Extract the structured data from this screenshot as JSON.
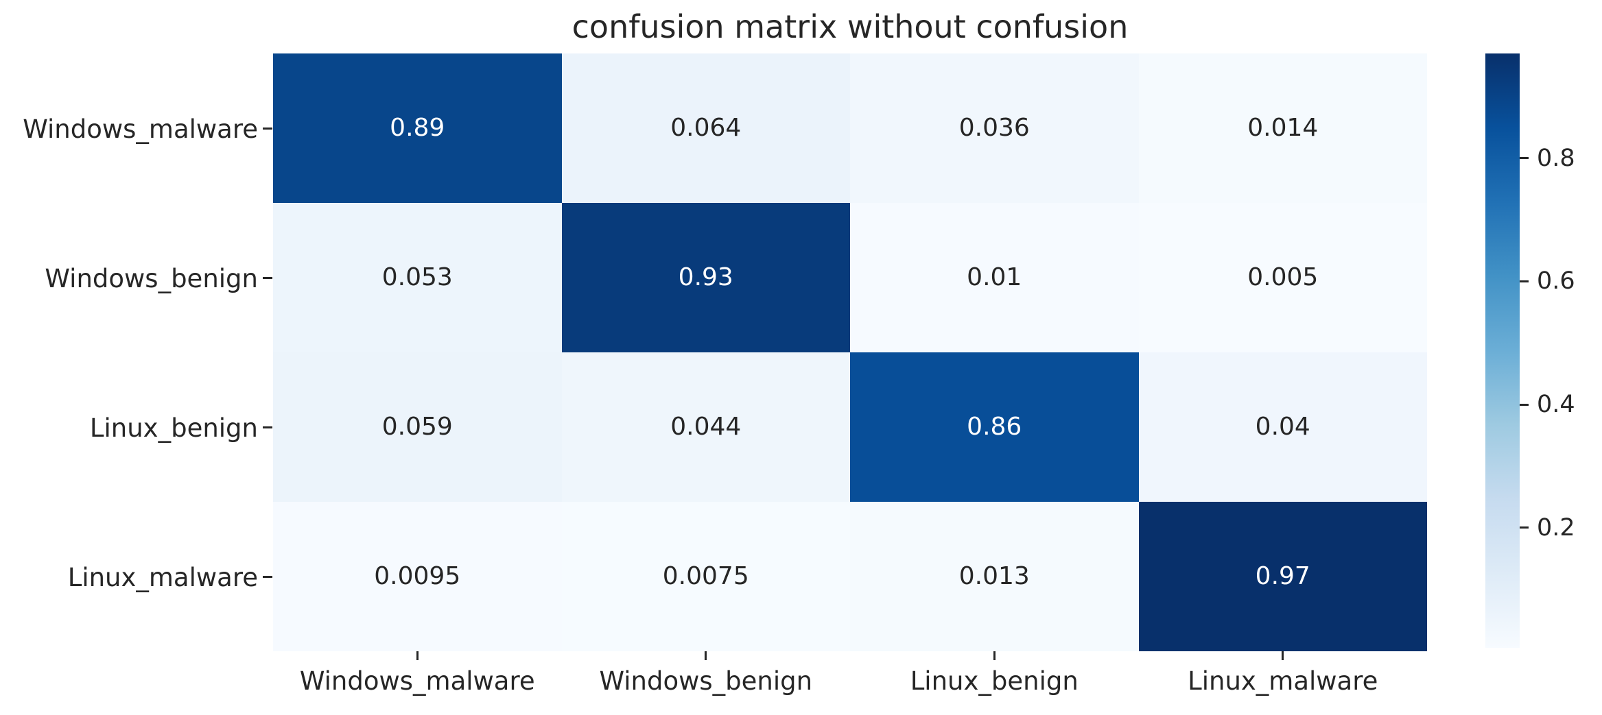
{
  "figure": {
    "background": "#ffffff",
    "text_color": "#262626"
  },
  "chart_data": {
    "type": "heatmap",
    "title": "confusion matrix without confusion",
    "x_tick_labels": [
      "Windows_malware",
      "Windows_benign",
      "Linux_benign",
      "Linux_malware"
    ],
    "y_tick_labels": [
      "Windows_malware",
      "Windows_benign",
      "Linux_benign",
      "Linux_malware"
    ],
    "cells": [
      [
        0.89,
        0.064,
        0.036,
        0.014
      ],
      [
        0.053,
        0.93,
        0.01,
        0.005
      ],
      [
        0.059,
        0.044,
        0.86,
        0.04
      ],
      [
        0.0095,
        0.0075,
        0.013,
        0.97
      ]
    ],
    "cell_labels": [
      [
        "0.89",
        "0.064",
        "0.036",
        "0.014"
      ],
      [
        "0.053",
        "0.93",
        "0.01",
        "0.005"
      ],
      [
        "0.059",
        "0.044",
        "0.86",
        "0.04"
      ],
      [
        "0.0095",
        "0.0075",
        "0.013",
        "0.97"
      ]
    ],
    "vmin": 0.005,
    "vmax": 0.97,
    "colormap": "Blues",
    "colormap_stops": [
      "#f7fbff",
      "#deebf7",
      "#c6dbef",
      "#9ecae1",
      "#6baed6",
      "#4292c6",
      "#2171b5",
      "#08519c",
      "#08306b"
    ],
    "annotation_colors": {
      "light_cell_text": "#262626",
      "dark_cell_text": "#ffffff"
    },
    "colorbar": {
      "position": "right",
      "ticks": [
        0.8,
        0.6,
        0.4,
        0.2
      ],
      "tick_labels": [
        "0.8",
        "0.6",
        "0.4",
        "0.2"
      ]
    },
    "grid": false,
    "legend_position": "none"
  }
}
